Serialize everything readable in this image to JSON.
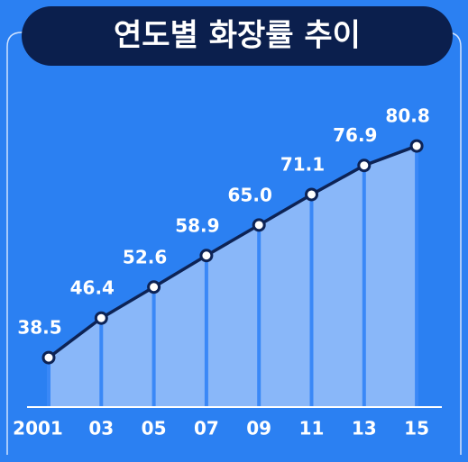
{
  "chart_data": {
    "type": "line",
    "title": "연도별 화장률 추이",
    "categories": [
      "2001",
      "03",
      "05",
      "07",
      "09",
      "11",
      "13",
      "15"
    ],
    "values": [
      38.5,
      46.4,
      52.6,
      58.9,
      65.0,
      71.1,
      76.9,
      80.8
    ],
    "value_labels": [
      "38.5",
      "46.4",
      "52.6",
      "58.9",
      "65.0",
      "71.1",
      "76.9",
      "80.8"
    ],
    "color": "#0d2355"
  }
}
